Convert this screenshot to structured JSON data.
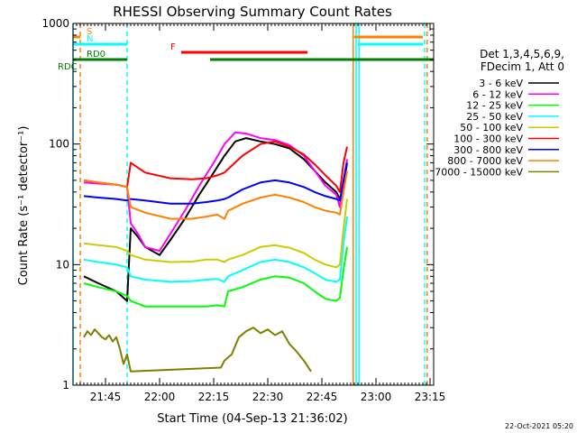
{
  "chart_data": {
    "type": "line",
    "title": "RHESSI Observing Summary Count Rates",
    "xlabel": "Start Time (04-Sep-13 21:36:02)",
    "ylabel": "Count Rate (s⁻¹ detector⁻¹)",
    "yscale": "log",
    "ylim": [
      1,
      1000
    ],
    "xlim_min": [
      0,
      100
    ],
    "x_ticks": [
      {
        "label": "21:45",
        "min": 9
      },
      {
        "label": "22:00",
        "min": 24
      },
      {
        "label": "22:15",
        "min": 39
      },
      {
        "label": "22:30",
        "min": 54
      },
      {
        "label": "22:45",
        "min": 69
      },
      {
        "label": "23:00",
        "min": 84
      },
      {
        "label": "23:15",
        "min": 99
      }
    ],
    "y_ticks": [
      {
        "label": "1",
        "value": 1
      },
      {
        "label": "10",
        "value": 10
      },
      {
        "label": "100",
        "value": 100
      },
      {
        "label": "1000",
        "value": 1000
      }
    ],
    "legend_header": [
      "Det 1,3,4,5,6,9,",
      "FDecim 1, Att 0"
    ],
    "series": [
      {
        "name": "3 - 6 keV",
        "color": "#000000",
        "values": [
          [
            3,
            8
          ],
          [
            7,
            7
          ],
          [
            12,
            6
          ],
          [
            15,
            5
          ],
          [
            16,
            20
          ],
          [
            18,
            17
          ],
          [
            20,
            14
          ],
          [
            24,
            12
          ],
          [
            27,
            16
          ],
          [
            31,
            24
          ],
          [
            35,
            38
          ],
          [
            39,
            58
          ],
          [
            42,
            80
          ],
          [
            45,
            105
          ],
          [
            48,
            112
          ],
          [
            52,
            105
          ],
          [
            56,
            100
          ],
          [
            60,
            92
          ],
          [
            64,
            75
          ],
          [
            67,
            60
          ],
          [
            70,
            48
          ],
          [
            73,
            40
          ],
          [
            74,
            35
          ],
          [
            75,
            45
          ],
          [
            76,
            70
          ]
        ]
      },
      {
        "name": "6 - 12 keV",
        "color": "#ff00ff",
        "values": [
          [
            3,
            48
          ],
          [
            7,
            47
          ],
          [
            12,
            46
          ],
          [
            15,
            44
          ],
          [
            16,
            22
          ],
          [
            18,
            18
          ],
          [
            20,
            14
          ],
          [
            24,
            13
          ],
          [
            27,
            18
          ],
          [
            31,
            28
          ],
          [
            35,
            45
          ],
          [
            39,
            70
          ],
          [
            42,
            100
          ],
          [
            45,
            125
          ],
          [
            48,
            122
          ],
          [
            52,
            112
          ],
          [
            56,
            108
          ],
          [
            60,
            98
          ],
          [
            64,
            80
          ],
          [
            67,
            60
          ],
          [
            70,
            45
          ],
          [
            73,
            38
          ],
          [
            74,
            30
          ],
          [
            75,
            50
          ],
          [
            76,
            75
          ]
        ]
      },
      {
        "name": "12 - 25 keV",
        "color": "#00ff00",
        "values": [
          [
            3,
            7
          ],
          [
            7,
            6.5
          ],
          [
            12,
            6
          ],
          [
            15,
            5.5
          ],
          [
            16,
            5
          ],
          [
            20,
            4.5
          ],
          [
            27,
            4.5
          ],
          [
            33,
            4.5
          ],
          [
            37,
            4.5
          ],
          [
            40,
            4.6
          ],
          [
            42,
            4.5
          ],
          [
            43,
            6
          ],
          [
            47,
            6.5
          ],
          [
            52,
            7.5
          ],
          [
            56,
            8
          ],
          [
            60,
            7.8
          ],
          [
            64,
            7
          ],
          [
            67,
            6
          ],
          [
            70,
            5.2
          ],
          [
            73,
            5
          ],
          [
            74,
            5.3
          ],
          [
            75,
            9
          ],
          [
            76,
            14
          ]
        ]
      },
      {
        "name": "25 - 50 keV",
        "color": "#00ffff",
        "values": [
          [
            3,
            11
          ],
          [
            7,
            10.5
          ],
          [
            12,
            10
          ],
          [
            15,
            9.5
          ],
          [
            16,
            8
          ],
          [
            20,
            7.5
          ],
          [
            27,
            7.2
          ],
          [
            33,
            7.3
          ],
          [
            37,
            7.5
          ],
          [
            40,
            7.6
          ],
          [
            42,
            7.2
          ],
          [
            43,
            8
          ],
          [
            47,
            9
          ],
          [
            52,
            10.5
          ],
          [
            56,
            11
          ],
          [
            60,
            10.5
          ],
          [
            64,
            9.5
          ],
          [
            67,
            8.5
          ],
          [
            70,
            7.5
          ],
          [
            73,
            7.2
          ],
          [
            74,
            7.5
          ],
          [
            75,
            15
          ],
          [
            76,
            25
          ]
        ]
      },
      {
        "name": "50 - 100 keV",
        "color": "#cccc00",
        "values": [
          [
            3,
            15
          ],
          [
            7,
            14.5
          ],
          [
            12,
            14
          ],
          [
            15,
            13
          ],
          [
            16,
            12
          ],
          [
            20,
            11
          ],
          [
            27,
            10.5
          ],
          [
            33,
            10.6
          ],
          [
            37,
            11
          ],
          [
            40,
            11
          ],
          [
            42,
            10.5
          ],
          [
            43,
            11
          ],
          [
            47,
            12
          ],
          [
            52,
            14
          ],
          [
            56,
            14.5
          ],
          [
            60,
            13.8
          ],
          [
            64,
            12.5
          ],
          [
            67,
            11
          ],
          [
            70,
            10
          ],
          [
            73,
            9.5
          ],
          [
            74,
            10
          ],
          [
            75,
            20
          ],
          [
            76,
            35
          ]
        ]
      },
      {
        "name": "100 - 300 keV",
        "color": "#ff0000",
        "values": [
          [
            3,
            50
          ],
          [
            7,
            48
          ],
          [
            12,
            46
          ],
          [
            15,
            44
          ],
          [
            16,
            70
          ],
          [
            20,
            58
          ],
          [
            27,
            52
          ],
          [
            33,
            51
          ],
          [
            37,
            52
          ],
          [
            40,
            55
          ],
          [
            42,
            58
          ],
          [
            43,
            62
          ],
          [
            47,
            80
          ],
          [
            52,
            100
          ],
          [
            56,
            105
          ],
          [
            60,
            95
          ],
          [
            64,
            82
          ],
          [
            67,
            68
          ],
          [
            70,
            55
          ],
          [
            73,
            45
          ],
          [
            74,
            40
          ],
          [
            75,
            70
          ],
          [
            76,
            95
          ]
        ]
      },
      {
        "name": "300 - 800 keV",
        "color": "#0000ff",
        "values": [
          [
            3,
            37
          ],
          [
            7,
            36
          ],
          [
            12,
            35
          ],
          [
            15,
            34
          ],
          [
            16,
            35
          ],
          [
            20,
            34
          ],
          [
            27,
            32
          ],
          [
            33,
            32
          ],
          [
            37,
            33
          ],
          [
            40,
            34
          ],
          [
            42,
            35
          ],
          [
            43,
            36
          ],
          [
            47,
            42
          ],
          [
            52,
            48
          ],
          [
            56,
            50
          ],
          [
            60,
            48
          ],
          [
            64,
            44
          ],
          [
            67,
            40
          ],
          [
            70,
            37
          ],
          [
            73,
            35
          ],
          [
            74,
            34
          ],
          [
            75,
            50
          ],
          [
            76,
            70
          ]
        ]
      },
      {
        "name": "800 - 7000 keV",
        "color": "#ff8000",
        "values": [
          [
            3,
            50
          ],
          [
            7,
            48
          ],
          [
            12,
            46
          ],
          [
            15,
            44
          ],
          [
            16,
            30
          ],
          [
            20,
            27
          ],
          [
            27,
            24
          ],
          [
            33,
            24
          ],
          [
            37,
            25
          ],
          [
            40,
            26
          ],
          [
            42,
            24
          ],
          [
            43,
            28
          ],
          [
            47,
            32
          ],
          [
            52,
            36
          ],
          [
            56,
            38
          ],
          [
            60,
            36
          ],
          [
            64,
            33
          ],
          [
            67,
            30
          ],
          [
            70,
            28
          ],
          [
            73,
            27
          ],
          [
            74,
            26
          ],
          [
            75,
            40
          ],
          [
            76,
            60
          ]
        ]
      },
      {
        "name": "7000 - 15000 keV",
        "color": "#808000",
        "values": [
          [
            3,
            2.5
          ],
          [
            4,
            2.8
          ],
          [
            5,
            2.6
          ],
          [
            6,
            2.9
          ],
          [
            7,
            2.7
          ],
          [
            8,
            2.5
          ],
          [
            9,
            2.4
          ],
          [
            10,
            2.6
          ],
          [
            11,
            2.3
          ],
          [
            12,
            2.5
          ],
          [
            13,
            2
          ],
          [
            14,
            1.5
          ],
          [
            15,
            1.8
          ],
          [
            16,
            1.3
          ],
          [
            41,
            1.4
          ],
          [
            42,
            1.6
          ],
          [
            44,
            1.8
          ],
          [
            46,
            2.5
          ],
          [
            48,
            2.8
          ],
          [
            50,
            3
          ],
          [
            52,
            2.7
          ],
          [
            54,
            2.9
          ],
          [
            56,
            2.6
          ],
          [
            58,
            2.8
          ],
          [
            60,
            2.2
          ],
          [
            62,
            1.9
          ],
          [
            64,
            1.6
          ],
          [
            66,
            1.3
          ]
        ]
      }
    ],
    "flags": [
      {
        "label": "S",
        "color": "#ff8000",
        "segments": [
          [
            0,
            2
          ],
          [
            78,
            97
          ]
        ]
      },
      {
        "label": "N",
        "color": "#00ffff",
        "segments": [
          [
            0,
            15
          ],
          [
            79,
            97
          ]
        ]
      },
      {
        "label": "F",
        "color": "#ff0000",
        "segments": [
          [
            30,
            65
          ]
        ]
      },
      {
        "label": "RD0",
        "color": "#008000",
        "segments": [
          [
            0,
            1
          ],
          [
            1,
            15
          ],
          [
            38,
            41
          ],
          [
            41,
            60
          ],
          [
            60,
            100
          ]
        ]
      }
    ],
    "vlines": [
      {
        "min": 0,
        "color": "#00ffff",
        "style": "solid"
      },
      {
        "min": 2,
        "color": "#ff8000",
        "style": "dashed"
      },
      {
        "min": 15,
        "color": "#00ffff",
        "style": "dashed"
      },
      {
        "min": 77.7,
        "color": "#ff8000",
        "style": "solid"
      },
      {
        "min": 78.5,
        "color": "#00ffff",
        "style": "solid"
      },
      {
        "min": 79.3,
        "color": "#00ffff",
        "style": "solid"
      },
      {
        "min": 97.5,
        "color": "#00ffff",
        "style": "dashed"
      },
      {
        "min": 98.2,
        "color": "#ff8000",
        "style": "dashed"
      }
    ],
    "footer_date": "22-Oct-2021 05:20",
    "grid": false
  }
}
